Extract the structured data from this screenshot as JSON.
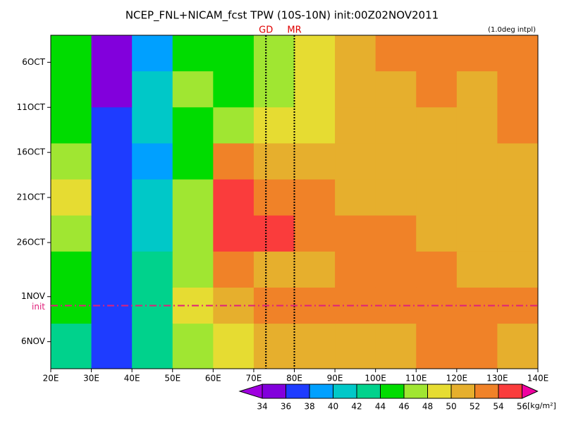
{
  "chart_data": {
    "type": "heatmap",
    "title": "NCEP_FNL+NICAM_fcst TPW (10S-10N) init:00Z02NOV2011",
    "annotation": "(1.0deg intpl)",
    "units": "[kg/m²]",
    "x": [
      25,
      35,
      45,
      55,
      65,
      75,
      85,
      95,
      105,
      115,
      125,
      135
    ],
    "y": [
      5,
      9,
      13,
      17,
      21,
      25,
      29,
      33,
      37
    ],
    "z": [
      [
        44,
        35,
        38,
        45,
        44,
        46,
        48,
        50,
        52,
        52,
        52,
        53
      ],
      [
        44,
        35,
        40,
        46,
        44,
        46,
        48,
        50,
        51,
        52,
        51,
        52
      ],
      [
        45,
        36,
        40,
        44,
        46,
        48,
        49,
        50,
        50,
        51,
        51,
        52
      ],
      [
        47,
        36,
        39,
        44,
        52,
        51,
        50,
        51,
        51,
        51,
        50,
        51
      ],
      [
        48,
        36,
        41,
        46,
        54,
        53,
        52,
        51,
        51,
        51,
        50,
        51
      ],
      [
        46,
        36,
        41,
        47,
        54,
        55,
        53,
        53,
        52,
        51,
        50,
        51
      ],
      [
        45,
        37,
        42,
        47,
        52,
        51,
        51,
        52,
        53,
        52,
        51,
        51
      ],
      [
        44,
        36,
        42,
        48,
        50,
        52,
        53,
        53,
        53,
        53,
        52,
        52
      ],
      [
        42,
        36,
        43,
        47,
        49,
        51,
        50,
        50,
        51,
        52,
        52,
        51
      ]
    ],
    "xlim": [
      20,
      140
    ],
    "ylim": [
      3,
      40
    ],
    "xticks": [
      {
        "value": 20,
        "label": "20E"
      },
      {
        "value": 30,
        "label": "30E"
      },
      {
        "value": 40,
        "label": "40E"
      },
      {
        "value": 50,
        "label": "50E"
      },
      {
        "value": 60,
        "label": "60E"
      },
      {
        "value": 70,
        "label": "70E"
      },
      {
        "value": 80,
        "label": "80E"
      },
      {
        "value": 90,
        "label": "90E"
      },
      {
        "value": 100,
        "label": "100E"
      },
      {
        "value": 110,
        "label": "110E"
      },
      {
        "value": 120,
        "label": "120E"
      },
      {
        "value": 130,
        "label": "130E"
      },
      {
        "value": 140,
        "label": "140E"
      }
    ],
    "yticks": [
      {
        "value": 6,
        "label": "6OCT"
      },
      {
        "value": 11,
        "label": "11OCT"
      },
      {
        "value": 16,
        "label": "16OCT"
      },
      {
        "value": 21,
        "label": "21OCT"
      },
      {
        "value": 26,
        "label": "26OCT"
      },
      {
        "value": 32,
        "label": "1NOV"
      },
      {
        "value": 37,
        "label": "6NOV"
      }
    ],
    "vlines": [
      {
        "value": 73,
        "label": "GD"
      },
      {
        "value": 80,
        "label": "MR"
      }
    ],
    "vline_label_color": "#e00000",
    "hline": {
      "value": 33,
      "label": "init",
      "color": "#e0207a"
    },
    "levels": [
      34,
      36,
      38,
      40,
      42,
      44,
      46,
      48,
      50,
      52,
      54,
      56
    ],
    "colors": [
      "#a000e0",
      "#8200dc",
      "#1e3cff",
      "#00a0ff",
      "#00c8c8",
      "#00d28c",
      "#00dc00",
      "#a0e632",
      "#e6dc32",
      "#e6af2d",
      "#f08228",
      "#fa3c3c",
      "#f000a0"
    ]
  }
}
